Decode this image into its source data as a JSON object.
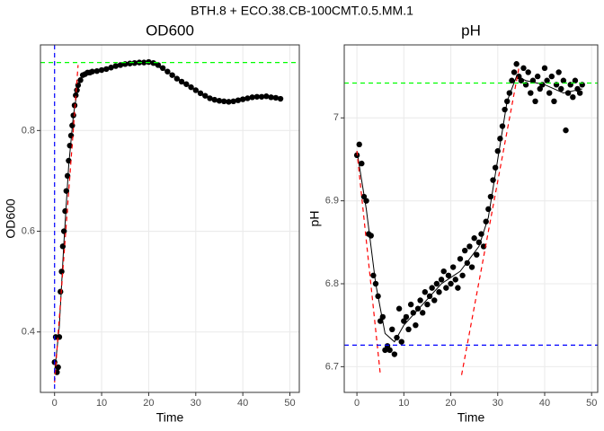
{
  "title": "BTH.8 + ECO.38.CB-100CMT.0.5.MM.1",
  "chart_data": [
    {
      "type": "scatter",
      "title": "OD600",
      "x_label": "Time",
      "y_label": "OD600",
      "color": "#000000",
      "x": [
        0,
        0.25,
        0.5,
        0.75,
        1,
        1.25,
        1.5,
        1.75,
        2,
        2.25,
        2.5,
        2.75,
        3,
        3.25,
        3.5,
        3.75,
        4,
        4.25,
        4.5,
        4.75,
        5,
        5.5,
        6,
        6.5,
        7,
        7.5,
        8,
        9,
        10,
        11,
        12,
        13,
        14,
        15,
        16,
        17,
        18,
        19,
        20,
        21,
        22,
        23,
        24,
        25,
        26,
        27,
        28,
        29,
        30,
        31,
        32,
        33,
        34,
        35,
        36,
        37,
        38,
        39,
        40,
        41,
        42,
        43,
        44,
        45,
        46,
        47,
        48
      ],
      "values": [
        0.34,
        0.39,
        0.32,
        0.33,
        0.39,
        0.48,
        0.52,
        0.57,
        0.6,
        0.64,
        0.68,
        0.71,
        0.74,
        0.77,
        0.79,
        0.81,
        0.83,
        0.85,
        0.87,
        0.88,
        0.89,
        0.9,
        0.91,
        0.912,
        0.915,
        0.915,
        0.917,
        0.918,
        0.92,
        0.922,
        0.925,
        0.928,
        0.93,
        0.932,
        0.933,
        0.934,
        0.935,
        0.935,
        0.936,
        0.934,
        0.93,
        0.924,
        0.917,
        0.91,
        0.903,
        0.897,
        0.892,
        0.886,
        0.88,
        0.874,
        0.869,
        0.864,
        0.861,
        0.859,
        0.858,
        0.857,
        0.858,
        0.86,
        0.862,
        0.864,
        0.866,
        0.867,
        0.867,
        0.868,
        0.866,
        0.865,
        0.863
      ],
      "smooth": {
        "color": "#000000",
        "x": [
          0,
          1,
          2,
          3,
          4,
          5,
          6,
          8,
          12,
          16,
          20,
          24,
          28,
          32,
          36,
          40,
          44,
          48
        ],
        "values": [
          0.32,
          0.41,
          0.58,
          0.73,
          0.83,
          0.89,
          0.91,
          0.915,
          0.925,
          0.933,
          0.936,
          0.917,
          0.892,
          0.869,
          0.858,
          0.862,
          0.867,
          0.863
        ]
      },
      "tangents": [
        {
          "color": "#ff0000",
          "x": [
            0,
            5
          ],
          "values": [
            0.3,
            0.93
          ]
        }
      ],
      "hlines": [
        {
          "y": 0.935,
          "color": "#00ff00"
        }
      ],
      "vlines": [
        {
          "x": 0,
          "color": "#0000ff"
        }
      ],
      "xlim": [
        -3,
        52
      ],
      "ylim": [
        0.28,
        0.97
      ],
      "xticks": [
        0,
        10,
        20,
        30,
        40,
        50
      ],
      "yticks": [
        0.4,
        0.6,
        0.8
      ],
      "grid": true
    },
    {
      "type": "scatter",
      "title": "pH",
      "x_label": "Time",
      "y_label": "pH",
      "color": "#000000",
      "x": [
        0,
        0.5,
        1,
        1.5,
        2,
        2.5,
        3,
        3.5,
        4,
        4.5,
        5,
        5.5,
        6,
        6.5,
        7,
        7.5,
        8,
        8.5,
        9,
        9.5,
        10,
        10.5,
        11,
        11.5,
        12,
        12.5,
        13,
        13.5,
        14,
        14.5,
        15,
        15.5,
        16,
        16.5,
        17,
        17.5,
        18,
        18.5,
        19,
        19.5,
        20,
        20.5,
        21,
        21.5,
        22,
        22.5,
        23,
        23.5,
        24,
        24.5,
        25,
        25.5,
        26,
        26.5,
        27,
        27.5,
        28,
        28.5,
        29,
        29.5,
        30,
        30.5,
        31,
        31.5,
        32,
        32.5,
        33,
        33.5,
        34,
        34.5,
        35,
        35.5,
        36,
        36.5,
        37,
        37.5,
        38,
        38.5,
        39,
        39.5,
        40,
        40.5,
        41,
        41.5,
        42,
        42.5,
        43,
        43.5,
        44,
        44.5,
        45,
        45.5,
        46,
        46.5,
        47,
        47.5,
        48
      ],
      "values": [
        6.955,
        6.968,
        6.945,
        6.905,
        6.9,
        6.86,
        6.858,
        6.81,
        6.8,
        6.785,
        6.755,
        6.76,
        6.72,
        6.725,
        6.72,
        6.745,
        6.715,
        6.735,
        6.77,
        6.73,
        6.755,
        6.76,
        6.745,
        6.775,
        6.765,
        6.75,
        6.77,
        6.78,
        6.765,
        6.79,
        6.775,
        6.785,
        6.795,
        6.78,
        6.8,
        6.79,
        6.805,
        6.815,
        6.795,
        6.81,
        6.8,
        6.82,
        6.805,
        6.795,
        6.83,
        6.81,
        6.84,
        6.825,
        6.845,
        6.82,
        6.855,
        6.835,
        6.85,
        6.86,
        6.845,
        6.875,
        6.89,
        6.905,
        6.925,
        6.94,
        6.96,
        6.975,
        6.99,
        7.01,
        7.02,
        7.03,
        7.045,
        7.055,
        7.065,
        7.05,
        7.045,
        7.06,
        7.04,
        7.055,
        7.03,
        7.045,
        7.02,
        7.05,
        7.035,
        7.04,
        7.06,
        7.045,
        7.03,
        7.05,
        7.02,
        7.04,
        7.055,
        7.035,
        7.045,
        6.985,
        7.03,
        7.04,
        7.025,
        7.045,
        7.035,
        7.03,
        7.04
      ],
      "smooth": {
        "color": "#000000",
        "x": [
          0,
          2,
          4,
          6,
          8,
          10,
          14,
          18,
          22,
          26,
          28,
          30,
          32,
          34,
          36,
          40,
          44,
          48
        ],
        "values": [
          6.96,
          6.89,
          6.8,
          6.74,
          6.73,
          6.75,
          6.775,
          6.8,
          6.815,
          6.845,
          6.88,
          6.95,
          7.02,
          7.05,
          7.045,
          7.04,
          7.03,
          7.035
        ]
      },
      "tangents": [
        {
          "color": "#ff0000",
          "x": [
            0,
            5
          ],
          "values": [
            6.96,
            6.69
          ]
        },
        {
          "color": "#ff0000",
          "x": [
            22.3,
            34.5
          ],
          "values": [
            6.69,
            7.06
          ]
        }
      ],
      "hlines": [
        {
          "y": 7.042,
          "color": "#00ff00"
        },
        {
          "y": 6.726,
          "color": "#0000ff"
        }
      ],
      "vlines": [],
      "xlim": [
        -2.7,
        51.3
      ],
      "ylim": [
        6.669,
        7.088
      ],
      "xticks": [
        0,
        10,
        20,
        30,
        40,
        50
      ],
      "yticks": [
        6.7,
        6.8,
        6.9,
        7.0
      ],
      "grid": true
    }
  ]
}
